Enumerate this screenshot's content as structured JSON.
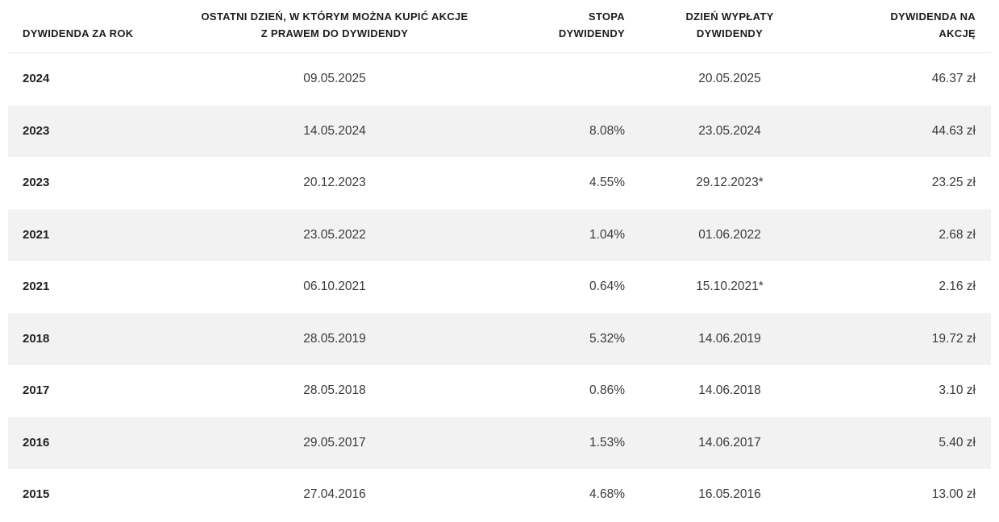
{
  "table": {
    "columns": [
      {
        "label": "DYWIDENDA ZA ROK"
      },
      {
        "label": "OSTATNI DZIEŃ, W KTÓRYM MOŻNA KUPIĆ AKCJE\nZ PRAWEM DO DYWIDENDY"
      },
      {
        "label": "STOPA\nDYWIDENDY"
      },
      {
        "label": "DZIEŃ WYPŁATY\nDYWIDENDY"
      },
      {
        "label": "DYWIDENDA NA\nAKCJĘ"
      }
    ],
    "rows": [
      {
        "year": "2024",
        "last_buy_date": "09.05.2025",
        "yield": "",
        "payout_date": "20.05.2025",
        "per_share": "46.37 zł"
      },
      {
        "year": "2023",
        "last_buy_date": "14.05.2024",
        "yield": "8.08%",
        "payout_date": "23.05.2024",
        "per_share": "44.63 zł"
      },
      {
        "year": "2023",
        "last_buy_date": "20.12.2023",
        "yield": "4.55%",
        "payout_date": "29.12.2023*",
        "per_share": "23.25 zł"
      },
      {
        "year": "2021",
        "last_buy_date": "23.05.2022",
        "yield": "1.04%",
        "payout_date": "01.06.2022",
        "per_share": "2.68 zł"
      },
      {
        "year": "2021",
        "last_buy_date": "06.10.2021",
        "yield": "0.64%",
        "payout_date": "15.10.2021*",
        "per_share": "2.16 zł"
      },
      {
        "year": "2018",
        "last_buy_date": "28.05.2019",
        "yield": "5.32%",
        "payout_date": "14.06.2019",
        "per_share": "19.72 zł"
      },
      {
        "year": "2017",
        "last_buy_date": "28.05.2018",
        "yield": "0.86%",
        "payout_date": "14.06.2018",
        "per_share": "3.10 zł"
      },
      {
        "year": "2016",
        "last_buy_date": "29.05.2017",
        "yield": "1.53%",
        "payout_date": "14.06.2017",
        "per_share": "5.40 zł"
      },
      {
        "year": "2015",
        "last_buy_date": "27.04.2016",
        "yield": "4.68%",
        "payout_date": "16.05.2016",
        "per_share": "13.00 zł"
      }
    ]
  },
  "colors": {
    "stripe": "#f2f2f2",
    "header_text": "#1c1c1c",
    "body_text": "#3a3a3a",
    "separator": "#e4e4e4"
  }
}
